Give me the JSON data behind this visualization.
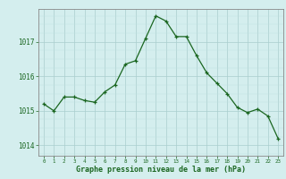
{
  "hours": [
    0,
    1,
    2,
    3,
    4,
    5,
    6,
    7,
    8,
    9,
    10,
    11,
    12,
    13,
    14,
    15,
    16,
    17,
    18,
    19,
    20,
    21,
    22,
    23
  ],
  "pressure": [
    1015.2,
    1015.0,
    1015.4,
    1015.4,
    1015.3,
    1015.25,
    1015.55,
    1015.75,
    1016.35,
    1016.45,
    1017.1,
    1017.75,
    1017.6,
    1017.15,
    1017.15,
    1016.6,
    1016.1,
    1015.8,
    1015.5,
    1015.1,
    1014.95,
    1015.05,
    1014.85,
    1014.2
  ],
  "line_color": "#1a6620",
  "marker_color": "#1a6620",
  "bg_color": "#d4eeee",
  "grid_color_major": "#aacece",
  "grid_color_minor": "#c0e0e0",
  "title": "Graphe pression niveau de la mer (hPa)",
  "title_color": "#1a6620",
  "yticks": [
    1014,
    1015,
    1016,
    1017
  ],
  "ylim": [
    1013.7,
    1017.95
  ],
  "xlim": [
    -0.5,
    23.5
  ],
  "axis_color": "#888888",
  "tick_color": "#1a6620"
}
